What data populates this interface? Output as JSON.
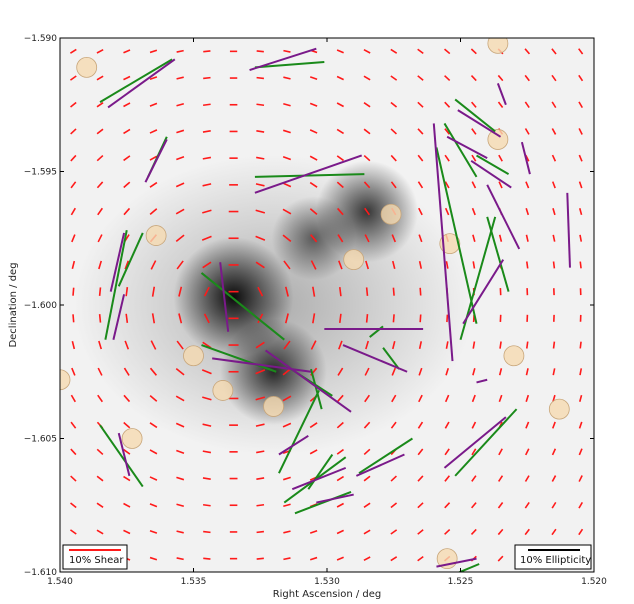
{
  "chart_data": {
    "type": "scatter",
    "title": "",
    "xlabel": "Right Ascension / deg",
    "ylabel": "Declination / deg",
    "xlim": [
      1.54,
      1.52
    ],
    "ylim": [
      -1.61,
      -1.59
    ],
    "x_ticks": [
      1.54,
      1.535,
      1.53,
      1.525,
      1.52
    ],
    "x_tick_labels": [
      "1.540",
      "1.535",
      "1.530",
      "1.525",
      "1.520"
    ],
    "y_ticks": [
      -1.59,
      -1.595,
      -1.6,
      -1.605,
      -1.61
    ],
    "y_tick_labels": [
      "−1.590",
      "−1.595",
      "−1.600",
      "−1.605",
      "−1.610"
    ],
    "grid": false,
    "colors": {
      "shear": "#ff1a1a",
      "ellipticity_green": "#1a8a1a",
      "ellipticity_purple": "#7a1a8a",
      "galaxy_fill": "#f5d9b0"
    },
    "legend": [
      {
        "label": "10% Shear",
        "position": "bottom-left",
        "color": "#ff1a1a"
      },
      {
        "label": "10% Ellipticity",
        "position": "bottom-right",
        "color": "#000000"
      }
    ],
    "shear_field_center": [
      1.5335,
      -1.6
    ],
    "shear_grid": {
      "x_start": 1.5395,
      "x_step": 0.001,
      "y_start": -1.5905,
      "y_step": 0.001,
      "count": 20
    },
    "mass_peaks": [
      {
        "ra": 1.5335,
        "dec": -1.5997,
        "strength": 1.0
      },
      {
        "ra": 1.532,
        "dec": -1.6025,
        "strength": 0.85
      },
      {
        "ra": 1.5285,
        "dec": -1.5965,
        "strength": 0.8
      },
      {
        "ra": 1.5305,
        "dec": -1.5975,
        "strength": 0.6
      }
    ],
    "galaxies": [
      {
        "ra": 1.539,
        "dec": -1.5911
      },
      {
        "ra": 1.5236,
        "dec": -1.5902
      },
      {
        "ra": 1.5236,
        "dec": -1.5938
      },
      {
        "ra": 1.5364,
        "dec": -1.5974
      },
      {
        "ra": 1.5276,
        "dec": -1.5966
      },
      {
        "ra": 1.529,
        "dec": -1.5983
      },
      {
        "ra": 1.5254,
        "dec": -1.5977
      },
      {
        "ra": 1.535,
        "dec": -1.6019
      },
      {
        "ra": 1.523,
        "dec": -1.6019
      },
      {
        "ra": 1.54,
        "dec": -1.6028
      },
      {
        "ra": 1.5339,
        "dec": -1.6032
      },
      {
        "ra": 1.532,
        "dec": -1.6038
      },
      {
        "ra": 1.5213,
        "dec": -1.6039
      },
      {
        "ra": 1.5373,
        "dec": -1.605
      },
      {
        "ra": 1.5255,
        "dec": -1.6095
      }
    ],
    "ellipticity_green": [
      [
        1.5385,
        -1.5924,
        1.5358,
        -1.5908
      ],
      [
        1.5327,
        -1.5911,
        1.5301,
        -1.5909
      ],
      [
        1.5302,
        -1.589,
        1.5285,
        -1.5899
      ],
      [
        1.5252,
        -1.5923,
        1.5237,
        -1.5935
      ],
      [
        1.5244,
        -1.5944,
        1.5232,
        -1.5951
      ],
      [
        1.5256,
        -1.5932,
        1.5244,
        -1.5952
      ],
      [
        1.5367,
        -1.5952,
        1.536,
        -1.5937
      ],
      [
        1.5327,
        -1.5952,
        1.5286,
        -1.5951
      ],
      [
        1.5259,
        -1.5941,
        1.5244,
        -1.6007
      ],
      [
        1.525,
        -1.6013,
        1.5237,
        -1.5967
      ],
      [
        1.524,
        -1.5967,
        1.5232,
        -1.5995
      ],
      [
        1.5347,
        -1.5988,
        1.5316,
        -1.6013
      ],
      [
        1.5383,
        -1.6013,
        1.5375,
        -1.5972
      ],
      [
        1.5378,
        -1.5993,
        1.5369,
        -1.5973
      ],
      [
        1.5347,
        -1.6015,
        1.5319,
        -1.6025
      ],
      [
        1.5315,
        -1.6023,
        1.5298,
        -1.6034
      ],
      [
        1.5306,
        -1.6024,
        1.5302,
        -1.6039
      ],
      [
        1.5284,
        -1.6012,
        1.5279,
        -1.6008
      ],
      [
        1.5279,
        -1.6016,
        1.5273,
        -1.6024
      ],
      [
        1.5318,
        -1.6063,
        1.5303,
        -1.6032
      ],
      [
        1.5385,
        -1.6045,
        1.5369,
        -1.6068
      ],
      [
        1.5316,
        -1.6074,
        1.5293,
        -1.6057
      ],
      [
        1.5298,
        -1.6056,
        1.5307,
        -1.6069
      ],
      [
        1.5312,
        -1.6078,
        1.5291,
        -1.607
      ],
      [
        1.5288,
        -1.6063,
        1.5268,
        -1.605
      ],
      [
        1.5252,
        -1.6064,
        1.5229,
        -1.6039
      ],
      [
        1.5243,
        -1.6097,
        1.5255,
        -1.6102
      ]
    ],
    "ellipticity_purple": [
      [
        1.5382,
        -1.5926,
        1.5357,
        -1.5908
      ],
      [
        1.5329,
        -1.5912,
        1.5304,
        -1.5904
      ],
      [
        1.5298,
        -1.589,
        1.5283,
        -1.5895
      ],
      [
        1.5251,
        -1.5927,
        1.5235,
        -1.5937
      ],
      [
        1.5236,
        -1.5917,
        1.5233,
        -1.5925
      ],
      [
        1.5227,
        -1.5939,
        1.5224,
        -1.5951
      ],
      [
        1.5255,
        -1.5937,
        1.524,
        -1.5945
      ],
      [
        1.5246,
        -1.5946,
        1.5231,
        -1.5956
      ],
      [
        1.5368,
        -1.5954,
        1.536,
        -1.5938
      ],
      [
        1.5327,
        -1.5958,
        1.5287,
        -1.5944
      ],
      [
        1.526,
        -1.5932,
        1.5253,
        -1.6021
      ],
      [
        1.5249,
        -1.6007,
        1.5234,
        -1.5983
      ],
      [
        1.524,
        -1.5955,
        1.5228,
        -1.5979
      ],
      [
        1.521,
        -1.5958,
        1.5209,
        -1.5986
      ],
      [
        1.5381,
        -1.5995,
        1.5376,
        -1.5973
      ],
      [
        1.538,
        -1.6013,
        1.5376,
        -1.5996
      ],
      [
        1.534,
        -1.5984,
        1.5337,
        -1.601
      ],
      [
        1.5343,
        -1.602,
        1.5306,
        -1.6025
      ],
      [
        1.5323,
        -1.6017,
        1.5291,
        -1.604
      ],
      [
        1.5301,
        -1.6009,
        1.5264,
        -1.6009
      ],
      [
        1.5294,
        -1.6015,
        1.527,
        -1.6025
      ],
      [
        1.5244,
        -1.6029,
        1.524,
        -1.6028
      ],
      [
        1.5378,
        -1.6048,
        1.5374,
        -1.6064
      ],
      [
        1.5318,
        -1.6056,
        1.5307,
        -1.6049
      ],
      [
        1.5313,
        -1.6069,
        1.5293,
        -1.6061
      ],
      [
        1.5304,
        -1.6074,
        1.529,
        -1.6071
      ],
      [
        1.5289,
        -1.6064,
        1.5271,
        -1.6056
      ],
      [
        1.5256,
        -1.6061,
        1.5233,
        -1.6042
      ],
      [
        1.5259,
        -1.6098,
        1.5244,
        -1.6095
      ]
    ]
  }
}
